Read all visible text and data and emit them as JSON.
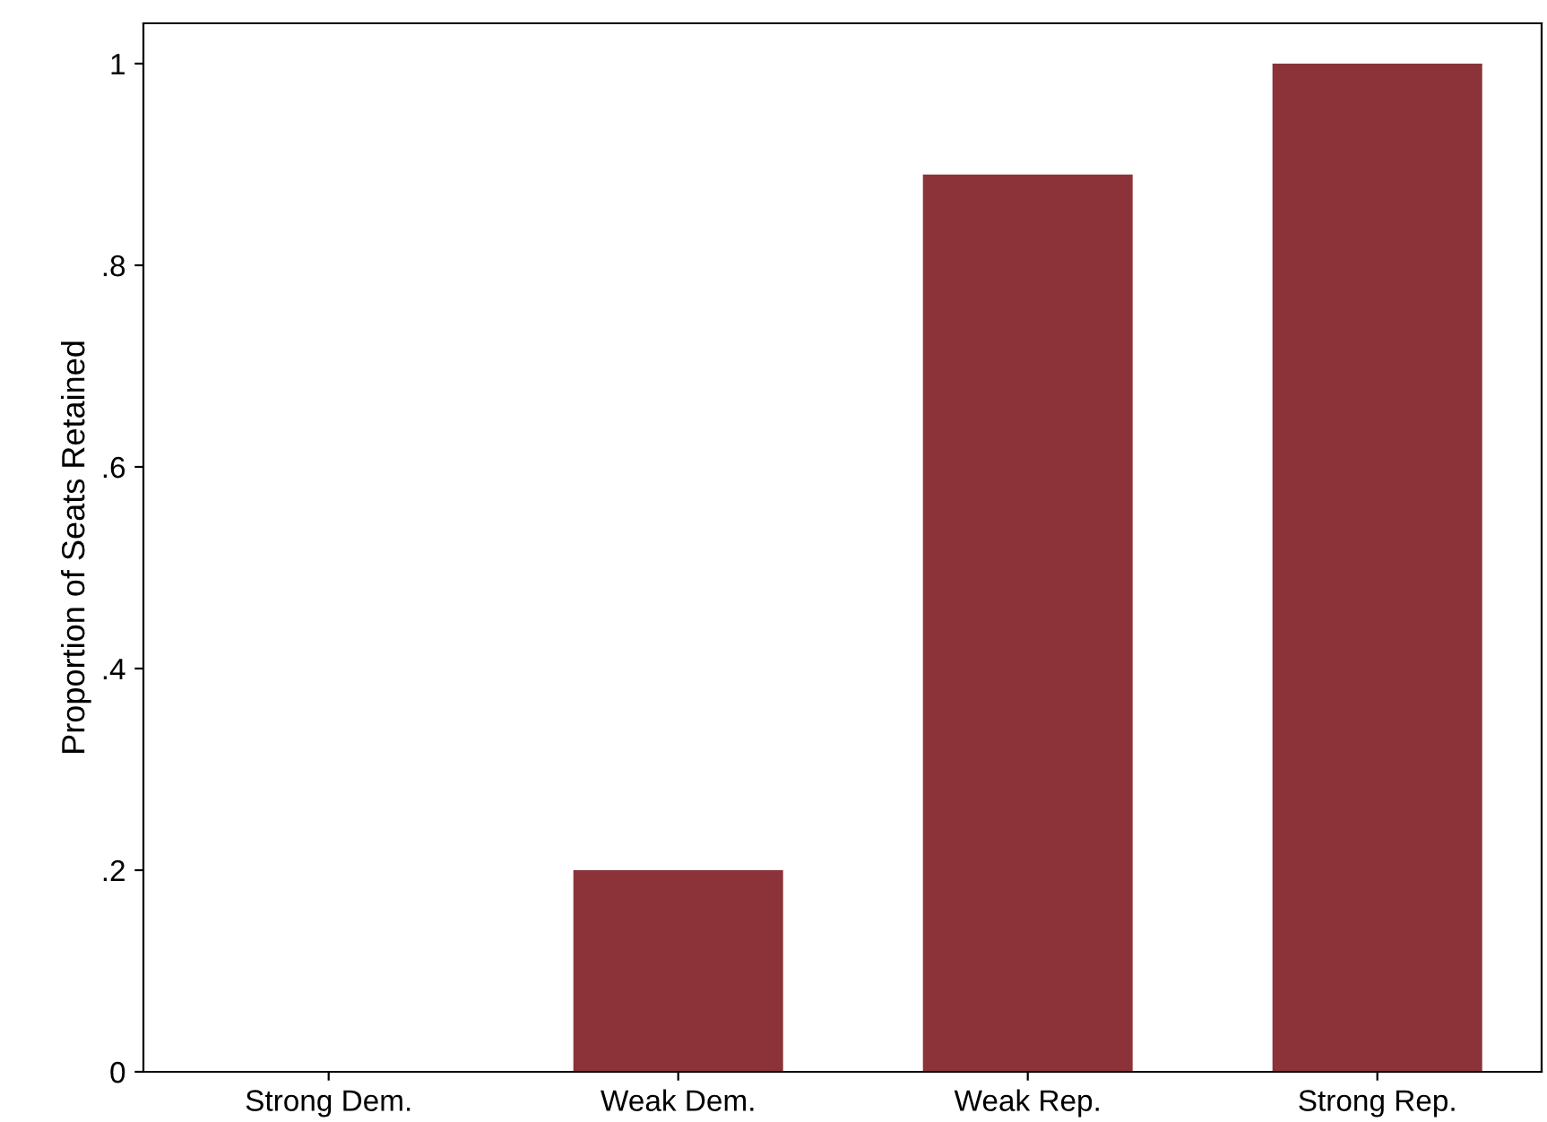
{
  "chart_data": {
    "type": "bar",
    "ylabel": "Proportion of Seats Retained",
    "categories": [
      "Strong Dem.",
      "Weak Dem.",
      "Weak Rep.",
      "Strong Rep."
    ],
    "values": [
      0,
      0.2,
      0.89,
      1
    ],
    "color": "#8b3339",
    "ylim": [
      0,
      1.04
    ],
    "yticks": [
      {
        "value": 0,
        "label": "0"
      },
      {
        "value": 0.2,
        "label": ".2"
      },
      {
        "value": 0.4,
        "label": ".4"
      },
      {
        "value": 0.6,
        "label": ".6"
      },
      {
        "value": 0.8,
        "label": ".8"
      },
      {
        "value": 1,
        "label": "1"
      }
    ],
    "grid": false
  }
}
